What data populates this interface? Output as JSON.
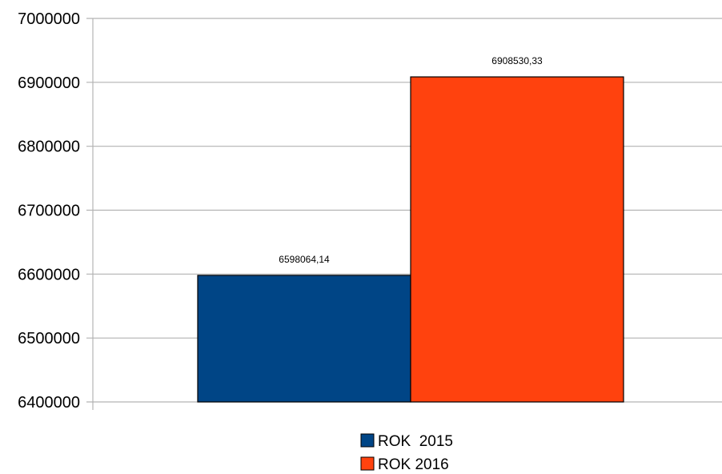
{
  "chart_data": {
    "type": "bar",
    "title": "",
    "xlabel": "",
    "ylabel": "",
    "ylim": [
      6400000,
      7000000
    ],
    "yticks": [
      "6400000",
      "6500000",
      "6600000",
      "6700000",
      "6800000",
      "6900000",
      "7000000"
    ],
    "grid": true,
    "legend_position": "bottom",
    "series": [
      {
        "name": "ROK  2015",
        "value": 6598064.14,
        "label": "6598064,14",
        "color": "#004586"
      },
      {
        "name": "ROK 2016",
        "value": 6908530.33,
        "label": "6908530,33",
        "color": "#ff420e"
      }
    ]
  }
}
